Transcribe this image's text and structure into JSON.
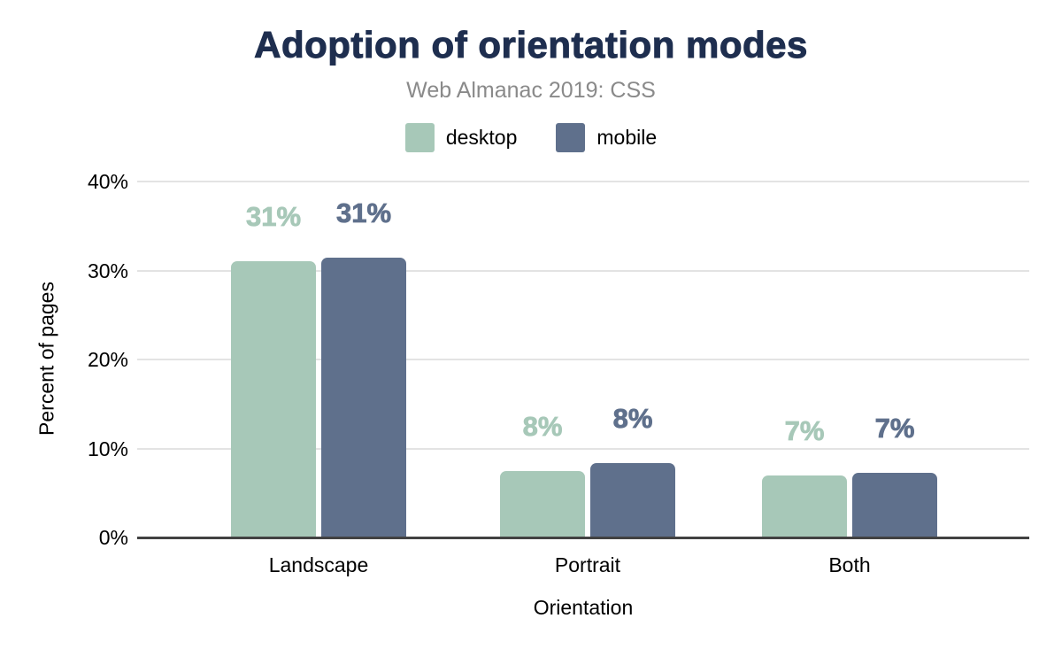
{
  "chart_data": {
    "type": "bar",
    "title": "Adoption of orientation modes",
    "subtitle": "Web Almanac 2019: CSS",
    "categories": [
      "Landscape",
      "Portrait",
      "Both"
    ],
    "series": [
      {
        "name": "desktop",
        "color": "#a7c8b8",
        "values": [
          31.0,
          7.5,
          7.0
        ],
        "data_labels": [
          "31%",
          "8%",
          "7%"
        ]
      },
      {
        "name": "mobile",
        "color": "#5f708c",
        "values": [
          31.4,
          8.4,
          7.3
        ],
        "data_labels": [
          "31%",
          "8%",
          "7%"
        ]
      }
    ],
    "xlabel": "Orientation",
    "ylabel": "Percent of pages",
    "ylim": [
      0,
      40
    ],
    "yticks": [
      {
        "value": 0,
        "label": "0%"
      },
      {
        "value": 10,
        "label": "10%"
      },
      {
        "value": 20,
        "label": "20%"
      },
      {
        "value": 30,
        "label": "30%"
      },
      {
        "value": 40,
        "label": "40%"
      }
    ],
    "grid": true,
    "legend_position": "top",
    "colors": {
      "title": "#1e2e4f",
      "subtitle": "#8a8a8a",
      "axis_text": "#000000",
      "gridline": "#e3e3e3",
      "axis_line": "#424242",
      "background": "#ffffff"
    }
  }
}
